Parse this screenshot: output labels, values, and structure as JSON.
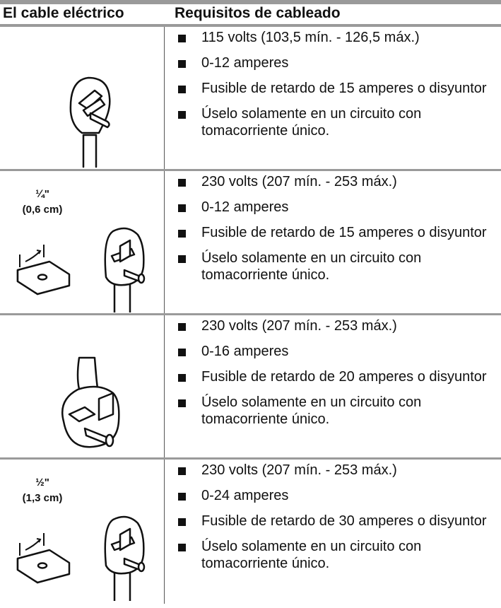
{
  "header": {
    "col1": "El cable eléctrico",
    "col2": "Requisitos de cableado"
  },
  "rows": [
    {
      "items": [
        "115 volts (103,5 mín. - 126,5 máx.)",
        "0-12 amperes",
        "Fusible de retardo de 15 amperes o disyuntor",
        "Úselo solamente en un circuito con tomacorriente único."
      ]
    },
    {
      "dimension": {
        "fraction": "¼\"",
        "metric": "(0,6 cm)"
      },
      "items": [
        "230 volts (207 mín. - 253 máx.)",
        "0-12 amperes",
        "Fusible de retardo de 15 amperes o disyuntor",
        "Úselo solamente en un circuito con tomacorriente único."
      ]
    },
    {
      "items": [
        "230 volts (207 mín. - 253 máx.)",
        "0-16 amperes",
        "Fusible de retardo de 20 amperes o disyuntor",
        "Úselo solamente en un circuito con tomacorriente único."
      ]
    },
    {
      "dimension": {
        "fraction": "½\"",
        "metric": "(1,3 cm)"
      },
      "items": [
        "230 volts (207 mín. - 253 máx.)",
        "0-24 amperes",
        "Fusible de retardo de 30 amperes o disyuntor",
        "Úselo solamente en un circuito con tomacorriente único."
      ]
    }
  ]
}
